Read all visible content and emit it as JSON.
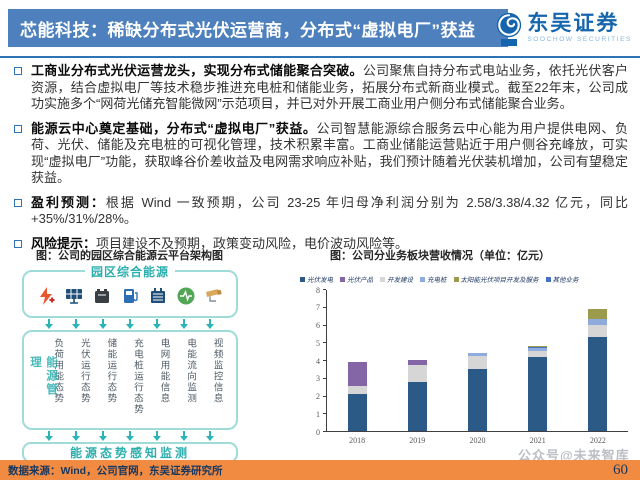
{
  "header": {
    "title": "芯能科技：稀缺分布式光伏运营商，分布式“虚拟电厂”获益",
    "logo": {
      "name": "东吴证券",
      "subtitle": "SOOCHOW SECURITIES",
      "icon": "soochow-swirl-icon"
    }
  },
  "bullets": [
    {
      "lead": "工商业分布式光伏运营龙头，实现分布式储能聚合突破。",
      "body": "公司聚焦自持分布式电站业务，依托光伏客户资源，结合虚拟电厂等技术稳步推进充电桩和储能业务，拓展分布式新商业模式。截至22年末，公司成功实施多个“网荷光储充智能微网”示范项目，并已对外开展工商业用户侧分布式储能聚合业务。"
    },
    {
      "lead": "能源云中心奠定基础，分布式“虚拟电厂”获益。",
      "body": "公司智慧能源综合服务云中心能为用户提供电网、负荷、光伏、储能及充电桩的可视化管理，技术积累丰富。工商业储能运营贴近于用户侧谷充峰放，可实现“虚拟电厂”功能，获取峰谷价差收益及电网需求响应补贴，我们预计随着光伏装机增加，公司有望稳定获益。"
    },
    {
      "lead": "盈利预测：",
      "body": "根据 Wind 一致预期，公司 23-25 年归母净利润分别为 2.58/3.38/4.32 亿元，同比 +35%/31%/28%。"
    },
    {
      "lead": "风险提示：",
      "body": "项目建设不及预期，政策变动风险，电价波动风险等。"
    }
  ],
  "diagram": {
    "caption": "图：公司的园区综合能源云平台架构图",
    "top_box_title": "园区综合能源",
    "icons": [
      "lightning-icon",
      "solar-panel-icon",
      "battery-icon",
      "ev-charger-icon",
      "transformer-icon",
      "meter-icon",
      "camera-icon"
    ],
    "side_label": "能源管理",
    "columns": [
      "负荷用能态势",
      "光伏运行态势",
      "储能运行态势",
      "充电桩运行态势",
      "电网用能信息",
      "电能流向监测",
      "视频监控信息"
    ],
    "bottom_box_title": "能源态势感知监测"
  },
  "chart": {
    "caption": "图：公司分业务板块营收情况（单位：亿元）"
  },
  "chart_data": {
    "type": "bar",
    "stacked": true,
    "title": "公司分业务板块营收情况（单位：亿元）",
    "categories": [
      "2018",
      "2019",
      "2020",
      "2021",
      "2022"
    ],
    "series": [
      {
        "name": "光伏发电",
        "color": "#2B5A87",
        "values": [
          2.1,
          2.75,
          3.5,
          4.15,
          5.3
        ]
      },
      {
        "name": "光伏产品",
        "color": "#8465A5",
        "values": [
          1.35,
          0.3,
          0,
          0,
          0
        ]
      },
      {
        "name": "开发建设",
        "color": "#D6D6D6",
        "values": [
          0.45,
          0.95,
          0.75,
          0.35,
          0.7
        ]
      },
      {
        "name": "充电桩",
        "color": "#8FAADC",
        "values": [
          0,
          0,
          0.12,
          0.15,
          0.3
        ]
      },
      {
        "name": "太阳能光伏项目开发及服务",
        "color": "#9B9A4D",
        "values": [
          0,
          0,
          0,
          0.05,
          0.55
        ]
      },
      {
        "name": "其他业务",
        "color": "#4472C4",
        "values": [
          0,
          0,
          0.05,
          0.1,
          0
        ]
      }
    ],
    "stack_order": [
      0,
      2,
      1,
      3,
      5,
      4
    ],
    "ylim": [
      0,
      8
    ],
    "yticks": [
      0,
      1,
      2,
      3,
      4,
      5,
      6,
      7,
      8
    ],
    "legend_position": "top",
    "grid": false
  },
  "footer": {
    "source": "数据来源：Wind，公司官网，东吴证券研究所",
    "page_number": "60",
    "watermark": "公众号@未来智库"
  }
}
